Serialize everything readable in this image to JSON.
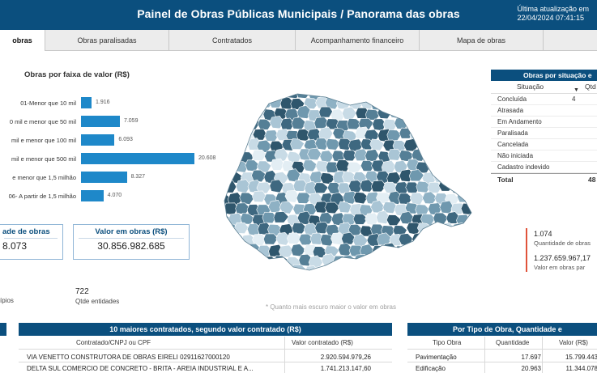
{
  "header": {
    "title": "Painel de Obras Públicas Municipais / Panorama das obras",
    "update_label": "Última atualização em",
    "update_value": "22/04/2024 07:41:15"
  },
  "tabs": [
    {
      "label": "obras"
    },
    {
      "label": "Obras paralisadas"
    },
    {
      "label": "Contratados"
    },
    {
      "label": "Acompanhamento financeiro"
    },
    {
      "label": "Mapa de obras"
    }
  ],
  "value_chart": {
    "title": "Obras por faixa de valor (R$)",
    "bars": [
      {
        "label": "01-Menor que 10 mil",
        "value": 1916,
        "value_label": "1.916"
      },
      {
        "label": "0 mil e menor que 50 mil",
        "value": 7059,
        "value_label": "7.059"
      },
      {
        "label": "mil e menor que 100 mil",
        "value": 6093,
        "value_label": "6.093"
      },
      {
        "label": "mil e menor que 500 mil",
        "value": 20608,
        "value_label": "20.608"
      },
      {
        "label": "e menor que 1,5 milhão",
        "value": 8327,
        "value_label": "8.327"
      },
      {
        "label": "06- A partir de 1,5 milhão",
        "value": 4070,
        "value_label": "4.070"
      }
    ]
  },
  "kpis": {
    "qtd_label": "ade de obras",
    "qtd_value": "8.073",
    "valor_label": "Valor em obras (R$)",
    "valor_value": "30.856.982.685"
  },
  "counts": {
    "municipios_label": "ípios",
    "entidades_value": "722",
    "entidades_label": "Qtde entidades"
  },
  "map": {
    "note": "* Quanto mais escuro maior o valor em obras"
  },
  "situacao": {
    "title": "Obras por situação e",
    "col_situacao": "Situação",
    "col_qtd": "Qtd",
    "rows": [
      {
        "label": "Concluída",
        "value": "4"
      },
      {
        "label": "Atrasada",
        "value": ""
      },
      {
        "label": "Em Andamento",
        "value": ""
      },
      {
        "label": "Paralisada",
        "value": ""
      },
      {
        "label": "Cancelada",
        "value": ""
      },
      {
        "label": "Não iniciada",
        "value": ""
      },
      {
        "label": "Cadastro indevido",
        "value": ""
      }
    ],
    "total_label": "Total",
    "total_value": "48"
  },
  "side_kpi": {
    "qtd_value": "1.074",
    "qtd_label": "Quantidade de obras",
    "valor_value": "1.237.659.967,17",
    "valor_label": "Valor em obras par"
  },
  "contratados": {
    "title": "10 maiores contratados, segundo valor contratado (R$)",
    "col_nome": "Contratado/CNPJ ou CPF",
    "col_valor": "Valor contratado (R$)",
    "rows": [
      {
        "nome": "VIA VENETTO CONSTRUTORA DE OBRAS EIRELI 02911627000120",
        "valor": "2.920.594.979,26"
      },
      {
        "nome": "DELTA SUL COMERCIO DE CONCRETO - BRITA - AREIA INDUSTRIAL E A...",
        "valor": "1.741.213.147,60"
      }
    ]
  },
  "tipo": {
    "title": "Por Tipo de Obra, Quantidade e",
    "col_tipo": "Tipo Obra",
    "col_qtd": "Quantidade",
    "col_valor": "Valor (R$)",
    "rows": [
      {
        "tipo": "Pavimentação",
        "qtd": "17.697",
        "valor": "15.799.443"
      },
      {
        "tipo": "Edificação",
        "qtd": "20.963",
        "valor": "11.344.078"
      }
    ]
  },
  "colors": {
    "primary": "#0b4f7e",
    "bar": "#1e88c9",
    "accent_red": "#e0533a"
  }
}
